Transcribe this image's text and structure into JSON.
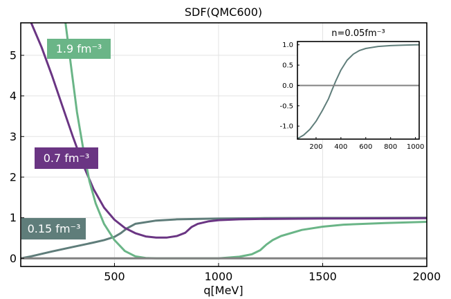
{
  "chart_data": [
    {
      "type": "line",
      "title": "SDF(QMC600)",
      "xlabel": "q[MeV]",
      "ylabel": "",
      "xlim": [
        50,
        2000
      ],
      "ylim": [
        -0.2,
        5.8
      ],
      "xticks": [
        500,
        1000,
        1500,
        2000
      ],
      "yticks": [
        0,
        1,
        2,
        3,
        4,
        5
      ],
      "grid": true,
      "series": [
        {
          "name": "0.15 fm⁻³",
          "color": "#5f7d7a",
          "x": [
            50,
            100,
            200,
            300,
            400,
            450,
            500,
            530,
            560,
            600,
            700,
            800,
            1000,
            1200,
            1500,
            2000
          ],
          "y": [
            0,
            0.05,
            0.17,
            0.28,
            0.39,
            0.45,
            0.53,
            0.62,
            0.74,
            0.85,
            0.93,
            0.96,
            0.98,
            0.99,
            0.995,
            1.0
          ]
        },
        {
          "name": "0.7 fm⁻³",
          "color": "#6a3583",
          "x": [
            100,
            150,
            200,
            250,
            300,
            350,
            400,
            450,
            500,
            550,
            600,
            650,
            700,
            750,
            800,
            840,
            870,
            900,
            950,
            1000,
            1100,
            1200,
            1500,
            2000
          ],
          "y": [
            5.8,
            5.2,
            4.5,
            3.75,
            3.0,
            2.3,
            1.7,
            1.25,
            0.95,
            0.75,
            0.62,
            0.54,
            0.51,
            0.51,
            0.55,
            0.63,
            0.77,
            0.85,
            0.91,
            0.94,
            0.96,
            0.97,
            0.98,
            0.99
          ]
        },
        {
          "name": "1.9 fm⁻³",
          "color": "#6ab587",
          "x": [
            265,
            290,
            320,
            350,
            380,
            410,
            450,
            500,
            550,
            600,
            650,
            700,
            800,
            900,
            1000,
            1100,
            1160,
            1200,
            1230,
            1260,
            1300,
            1400,
            1500,
            1600,
            1800,
            2000
          ],
          "y": [
            5.8,
            4.8,
            3.6,
            2.7,
            1.9,
            1.35,
            0.85,
            0.45,
            0.18,
            0.05,
            0.01,
            0.0,
            0.0,
            0.0,
            0.0,
            0.04,
            0.1,
            0.2,
            0.34,
            0.45,
            0.55,
            0.7,
            0.78,
            0.83,
            0.87,
            0.9
          ]
        },
        {
          "name": "",
          "color": "#808080",
          "x": [
            50,
            2000
          ],
          "y": [
            0,
            0
          ]
        }
      ],
      "annotations": [
        {
          "text": "1.9 fm⁻³",
          "color": "#6ab587"
        },
        {
          "text": "0.7 fm⁻³",
          "color": "#6a3583"
        },
        {
          "text": "0.15 fm⁻³",
          "color": "#5f7d7a"
        }
      ]
    },
    {
      "type": "line",
      "title": "n=0.05fm⁻³",
      "xlabel": "",
      "ylabel": "",
      "xlim": [
        50,
        1030
      ],
      "ylim": [
        -1.32,
        1.08
      ],
      "xticks": [
        200,
        400,
        600,
        800,
        1000
      ],
      "yticks": [
        -1.0,
        -0.5,
        0.0,
        0.5,
        1.0
      ],
      "grid": false,
      "series": [
        {
          "name": "",
          "color": "#5f7d7a",
          "x": [
            50,
            100,
            150,
            200,
            250,
            300,
            330,
            360,
            400,
            450,
            500,
            550,
            600,
            700,
            800,
            900,
            1000,
            1030
          ],
          "y": [
            -1.31,
            -1.22,
            -1.08,
            -0.88,
            -0.62,
            -0.33,
            -0.1,
            0.12,
            0.38,
            0.62,
            0.77,
            0.86,
            0.91,
            0.96,
            0.98,
            0.99,
            1.0,
            1.0
          ]
        },
        {
          "name": "",
          "color": "#808080",
          "x": [
            50,
            1030
          ],
          "y": [
            0,
            0
          ]
        }
      ]
    }
  ]
}
